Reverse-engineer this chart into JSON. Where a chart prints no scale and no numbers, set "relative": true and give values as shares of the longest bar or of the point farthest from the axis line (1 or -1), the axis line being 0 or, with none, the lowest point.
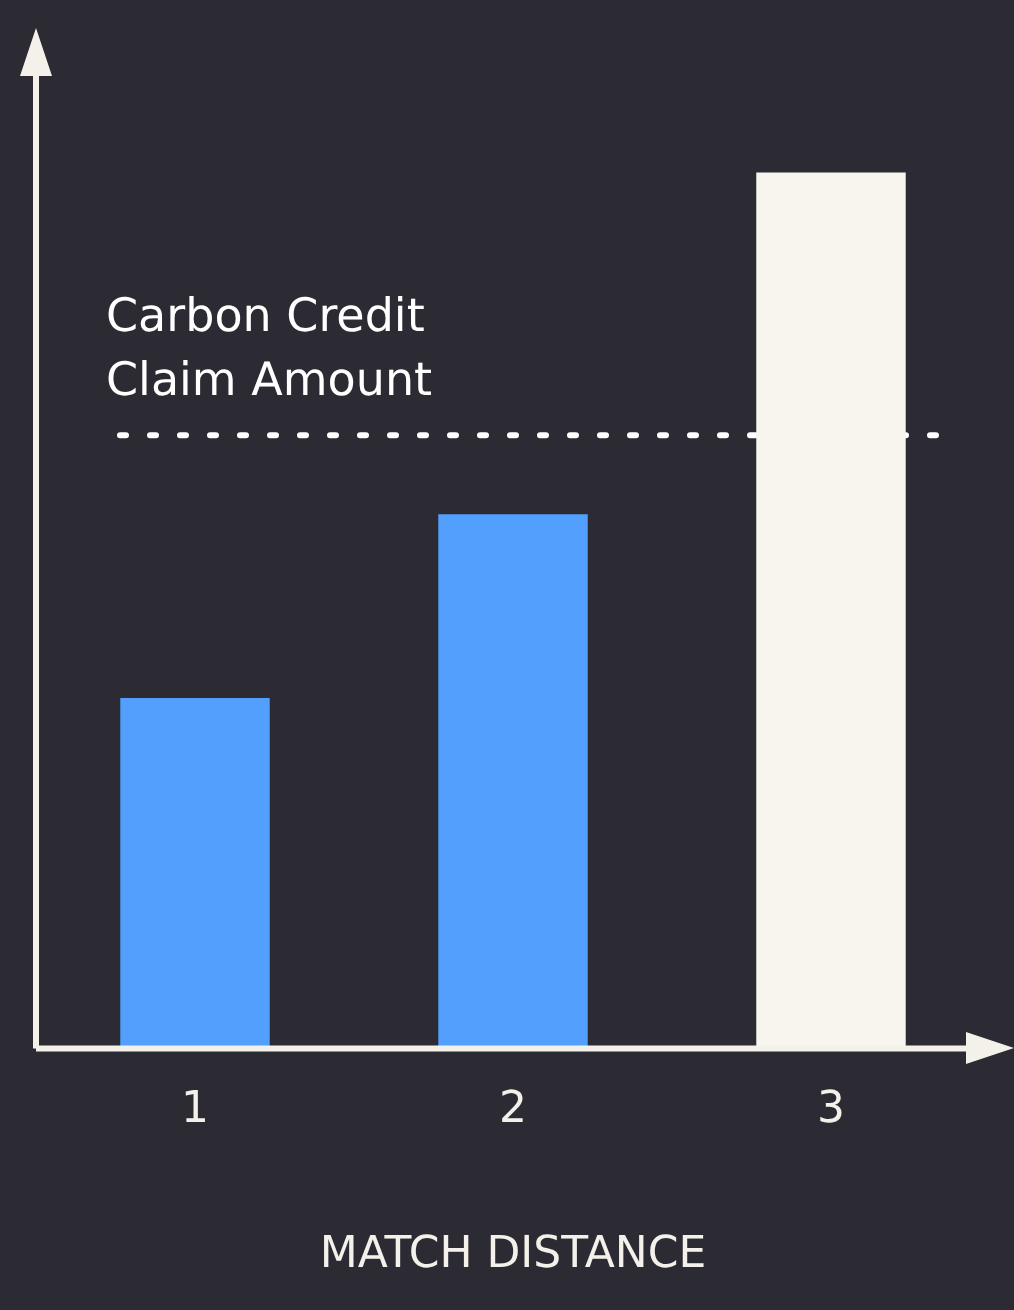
{
  "chart_data": {
    "type": "bar",
    "xlabel": "MATCH DISTANCE",
    "categories": [
      "1",
      "2",
      "3"
    ],
    "relative": true,
    "values": [
      0.4,
      0.61,
      1
    ],
    "colors": [
      "#529ffe",
      "#529ffe",
      "#f8f5ee"
    ],
    "ref_lines": [
      {
        "axis": "y",
        "value": 0.7,
        "label": "Carbon Credit Claim Amount",
        "color": "#ffffff",
        "line_style": "dotted"
      }
    ],
    "grid": false,
    "legend": false
  }
}
